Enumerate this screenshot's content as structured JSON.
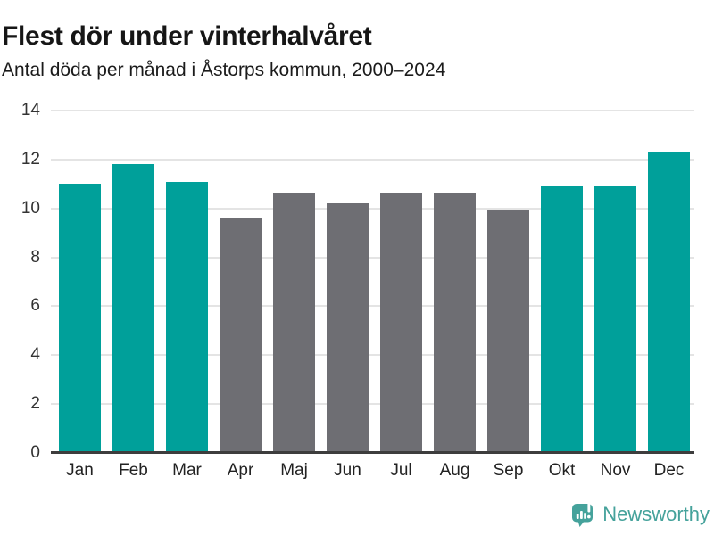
{
  "header": {
    "title": "Flest dör under vinterhalvåret",
    "subtitle": "Antal döda per månad i Åstorps kommun, 2000–2024"
  },
  "chart_data": {
    "type": "bar",
    "title": "Flest dör under vinterhalvåret",
    "subtitle": "Antal döda per månad i Åstorps kommun, 2000–2024",
    "categories": [
      "Jan",
      "Feb",
      "Mar",
      "Apr",
      "Maj",
      "Jun",
      "Jul",
      "Aug",
      "Sep",
      "Okt",
      "Nov",
      "Dec"
    ],
    "values": [
      11.0,
      11.8,
      11.1,
      9.6,
      10.6,
      10.2,
      10.6,
      10.6,
      9.9,
      10.9,
      10.9,
      12.3
    ],
    "bar_color_keys": [
      "teal",
      "teal",
      "teal",
      "gray",
      "gray",
      "gray",
      "gray",
      "gray",
      "gray",
      "teal",
      "teal",
      "teal"
    ],
    "colors": {
      "teal": "#00a09a",
      "gray": "#6e6e73"
    },
    "xlabel": "",
    "ylabel": "",
    "ylim": [
      0,
      14
    ],
    "yticks": [
      0,
      2,
      4,
      6,
      8,
      10,
      12,
      14
    ],
    "grid": true,
    "legend": "none"
  },
  "footer": {
    "brand": "Newsworthy",
    "brand_color": "#45a29b"
  }
}
